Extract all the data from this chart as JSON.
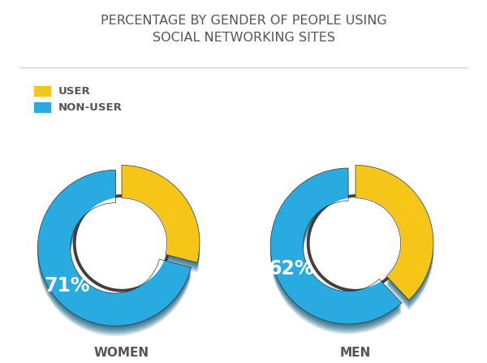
{
  "title": "PERCENTAGE BY GENDER OF PEOPLE USING\nSOCIAL NETWORKING SITES",
  "title_fontsize": 11.5,
  "legend_labels": [
    "USER",
    "NON-USER"
  ],
  "legend_colors": [
    "#F5C518",
    "#29ABE2"
  ],
  "charts": [
    {
      "label": "WOMEN",
      "values": [
        29,
        71
      ],
      "colors": [
        "#F5C518",
        "#29ABE2"
      ],
      "explode_index": 1,
      "explode_amount": 0.1,
      "pct_label": "71%",
      "pct_index": 1
    },
    {
      "label": "MEN",
      "values": [
        38,
        62
      ],
      "colors": [
        "#F5C518",
        "#29ABE2"
      ],
      "explode_index": 1,
      "explode_amount": 0.1,
      "pct_label": "62%",
      "pct_index": 1
    }
  ],
  "bg_color": "#FFFFFF",
  "text_color": "#555555",
  "shadow_color_dark": "#1a6080",
  "shadow_color_mid": "#1e7090",
  "donut_outer_r": 1.0,
  "donut_width": 0.42,
  "pct_fontsize": 17,
  "label_fontsize": 11,
  "separator_line_color": "#CCCCCC",
  "inner_ring_color": "#404040"
}
